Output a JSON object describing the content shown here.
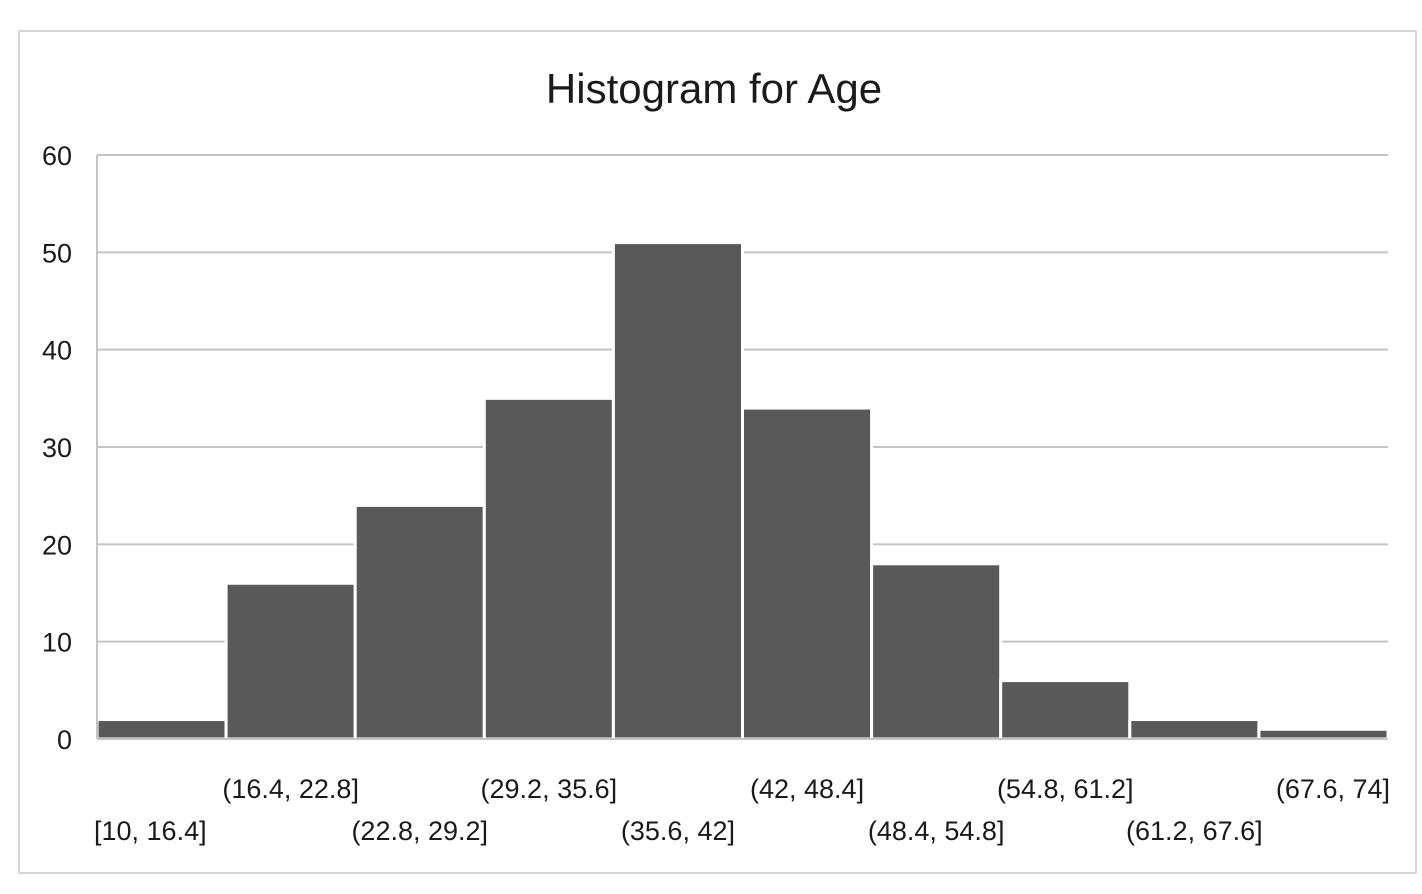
{
  "colors": {
    "bar": "#595959",
    "grid": "#c4c4c4",
    "text": "#1a1a1a"
  },
  "chart_data": {
    "type": "bar",
    "title": "Histogram for Age",
    "xlabel": "",
    "ylabel": "",
    "ylim": [
      0,
      60
    ],
    "yticks": [
      "0",
      "10",
      "20",
      "30",
      "40",
      "50",
      "60"
    ],
    "grid": true,
    "legend": "none",
    "categories": [
      "[10, 16.4]",
      "(16.4, 22.8]",
      "(22.8, 29.2]",
      "(29.2, 35.6]",
      "(35.6, 42]",
      "(42, 48.4]",
      "(48.4, 54.8]",
      "(54.8, 61.2]",
      "(61.2, 67.6]",
      "(67.6, 74]"
    ],
    "values": [
      2,
      16,
      24,
      35,
      51,
      34,
      18,
      6,
      2,
      1
    ]
  }
}
